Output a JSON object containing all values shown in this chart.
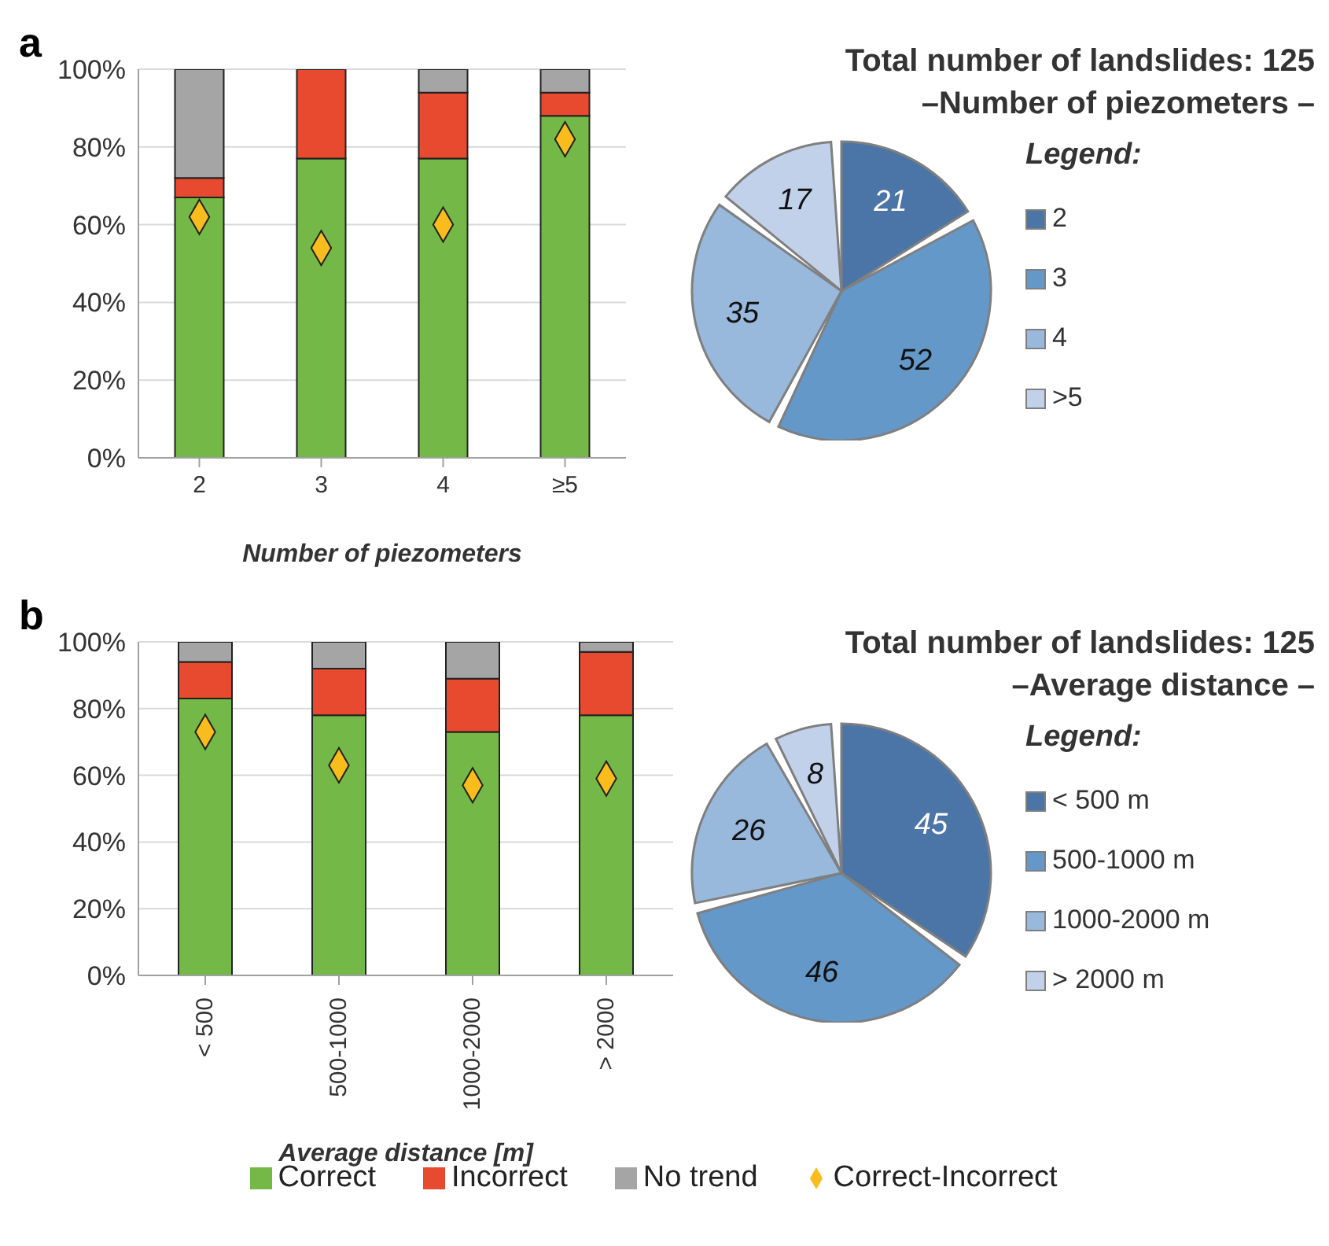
{
  "chart_data": [
    {
      "type": "bar",
      "stacked": true,
      "annotations": [
        "a"
      ],
      "xlabel": "Number of piezometers",
      "categories": [
        "2",
        "3",
        "4",
        "≥5"
      ],
      "series": [
        {
          "color": "#74b947",
          "values": [
            67,
            77,
            77,
            88
          ]
        },
        {
          "color": "#e84a30",
          "values": [
            5,
            23,
            17,
            6
          ]
        },
        {
          "color": "#a5a5a5",
          "values": [
            28,
            0,
            6,
            6
          ]
        },
        {
          "type": "scatter",
          "marker": "diamond",
          "color": "#f8bc1c",
          "values": [
            62,
            54,
            60,
            82
          ]
        }
      ],
      "ylim": [
        0,
        100
      ],
      "yticks": [
        {
          "value": 0,
          "label": "0%"
        },
        {
          "value": 20,
          "label": "20%"
        },
        {
          "value": 40,
          "label": "40%"
        },
        {
          "value": 60,
          "label": "60%"
        },
        {
          "value": 80,
          "label": "80%"
        },
        {
          "value": 100,
          "label": "100%"
        }
      ],
      "grid": "y",
      "legend": false
    },
    {
      "type": "pie",
      "title": "Total number of landslides: 125",
      "subtitle": "–Number of piezometers –",
      "legend_title": "Legend:",
      "legend": "right",
      "data_labels": true,
      "categories": [
        "2",
        "3",
        "4",
        ">5"
      ],
      "values": [
        21,
        52,
        35,
        17
      ],
      "colors": [
        "#4a75a6",
        "#6398c9",
        "#98b8dc",
        "#c2d1ea"
      ]
    },
    {
      "type": "bar",
      "stacked": true,
      "annotations": [
        "b"
      ],
      "xlabel": "Average distance [m]",
      "categories": [
        "< 500",
        "500-1000",
        "1000-2000",
        "> 2000"
      ],
      "series": [
        {
          "name": "Correct",
          "color": "#74b947",
          "values": [
            83,
            78,
            73,
            78
          ]
        },
        {
          "name": "Incorrect",
          "color": "#e84a30",
          "values": [
            11,
            14,
            16,
            19
          ]
        },
        {
          "name": "No trend",
          "color": "#a5a5a5",
          "values": [
            6,
            8,
            11,
            3
          ]
        },
        {
          "name": "Correct-Incorrect",
          "type": "scatter",
          "marker": "diamond",
          "color": "#f8bc1c",
          "values": [
            73,
            63,
            57,
            59
          ]
        }
      ],
      "ylim": [
        0,
        100
      ],
      "yticks": [
        {
          "value": 0,
          "label": "0%"
        },
        {
          "value": 20,
          "label": "20%"
        },
        {
          "value": 40,
          "label": "40%"
        },
        {
          "value": 60,
          "label": "60%"
        },
        {
          "value": 80,
          "label": "80%"
        },
        {
          "value": 100,
          "label": "100%"
        }
      ],
      "grid": "y",
      "legend": "bottom"
    },
    {
      "type": "pie",
      "title": "Total number of landslides: 125",
      "subtitle": "–Average distance –",
      "legend_title": "Legend:",
      "legend": "right",
      "data_labels": true,
      "categories": [
        "< 500 m",
        "500-1000 m",
        "1000-2000 m",
        "> 2000 m"
      ],
      "values": [
        45,
        46,
        26,
        8
      ],
      "colors": [
        "#4a75a6",
        "#6398c9",
        "#98b8dc",
        "#c2d1ea"
      ]
    }
  ]
}
